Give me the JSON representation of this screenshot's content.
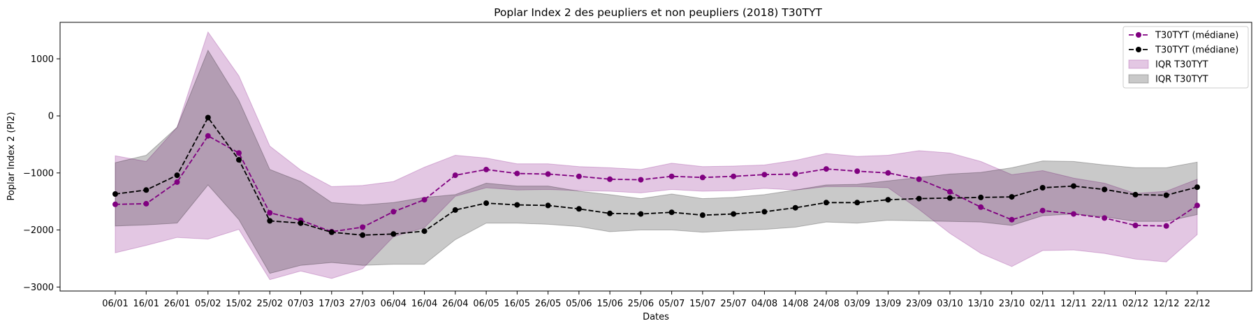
{
  "chart_data": {
    "type": "line",
    "title": "Poplar Index 2 des peupliers et non peupliers (2018) T30TYT",
    "xlabel": "Dates",
    "ylabel": "Poplar Index 2 (PI2)",
    "ylim": [
      -3070,
      1640
    ],
    "yticks": [
      -3000,
      -2000,
      -1000,
      0,
      1000
    ],
    "grid": false,
    "legend_position": "top-right",
    "categories": [
      "06/01",
      "16/01",
      "26/01",
      "05/02",
      "15/02",
      "25/02",
      "07/03",
      "17/03",
      "27/03",
      "06/04",
      "16/04",
      "26/04",
      "06/05",
      "16/05",
      "26/05",
      "05/06",
      "15/06",
      "25/06",
      "05/07",
      "15/07",
      "25/07",
      "04/08",
      "14/08",
      "24/08",
      "03/09",
      "13/09",
      "23/09",
      "03/10",
      "13/10",
      "23/10",
      "02/11",
      "12/11",
      "22/11",
      "02/12",
      "12/12",
      "22/12"
    ],
    "series": [
      {
        "name": "T30TYT (médiane)",
        "color": "#800080",
        "values": [
          -1550,
          -1540,
          -1160,
          -350,
          -650,
          -1700,
          -1830,
          -2030,
          -1950,
          -1680,
          -1470,
          -1040,
          -940,
          -1010,
          -1020,
          -1060,
          -1110,
          -1120,
          -1060,
          -1080,
          -1060,
          -1030,
          -1020,
          -930,
          -970,
          -1000,
          -1110,
          -1330,
          -1600,
          -1820,
          -1660,
          -1720,
          -1790,
          -1920,
          -1930,
          -1570
        ]
      },
      {
        "name": "T30TYT (médiane)",
        "color": "#000000",
        "values": [
          -1370,
          -1300,
          -1040,
          -30,
          -770,
          -1840,
          -1880,
          -2040,
          -2090,
          -2070,
          -2020,
          -1650,
          -1530,
          -1560,
          -1570,
          -1630,
          -1710,
          -1720,
          -1690,
          -1740,
          -1720,
          -1680,
          -1610,
          -1520,
          -1520,
          -1470,
          -1450,
          -1440,
          -1430,
          -1420,
          -1260,
          -1230,
          -1290,
          -1380,
          -1390,
          -1250
        ]
      }
    ],
    "bands": [
      {
        "name": "IQR T30TYT",
        "color": "#800080",
        "upper": [
          -700,
          -800,
          -200,
          1470,
          700,
          -530,
          -950,
          -1240,
          -1220,
          -1150,
          -900,
          -690,
          -740,
          -840,
          -840,
          -890,
          -910,
          -940,
          -830,
          -890,
          -880,
          -860,
          -780,
          -660,
          -710,
          -690,
          -610,
          -650,
          -800,
          -1030,
          -960,
          -1090,
          -1180,
          -1360,
          -1320,
          -1110
        ],
        "lower": [
          -2400,
          -2270,
          -2130,
          -2160,
          -1990,
          -2870,
          -2720,
          -2850,
          -2680,
          -2120,
          -1960,
          -1410,
          -1260,
          -1300,
          -1290,
          -1310,
          -1320,
          -1350,
          -1290,
          -1320,
          -1310,
          -1270,
          -1300,
          -1240,
          -1240,
          -1260,
          -1640,
          -2060,
          -2410,
          -2640,
          -2360,
          -2350,
          -2410,
          -2510,
          -2560,
          -2080
        ]
      },
      {
        "name": "IQR T30TYT",
        "color": "#000000",
        "upper": [
          -820,
          -690,
          -200,
          1150,
          270,
          -940,
          -1150,
          -1520,
          -1560,
          -1520,
          -1430,
          -1380,
          -1180,
          -1230,
          -1230,
          -1320,
          -1380,
          -1450,
          -1370,
          -1450,
          -1430,
          -1380,
          -1300,
          -1210,
          -1200,
          -1140,
          -1080,
          -1020,
          -990,
          -910,
          -790,
          -800,
          -860,
          -910,
          -910,
          -810
        ],
        "lower": [
          -1930,
          -1910,
          -1880,
          -1210,
          -1820,
          -2760,
          -2620,
          -2570,
          -2620,
          -2600,
          -2600,
          -2170,
          -1880,
          -1880,
          -1900,
          -1940,
          -2030,
          -2000,
          -2000,
          -2040,
          -2010,
          -1990,
          -1950,
          -1860,
          -1880,
          -1830,
          -1840,
          -1850,
          -1860,
          -1920,
          -1750,
          -1720,
          -1770,
          -1850,
          -1850,
          -1730
        ]
      }
    ]
  }
}
